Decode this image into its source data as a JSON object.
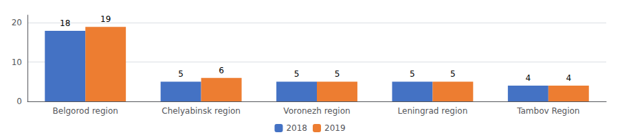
{
  "chart_data": {
    "type": "bar",
    "categories": [
      "Belgorod region",
      "Chelyabinsk region",
      "Voronezh region",
      "Leningrad region",
      "Tambov Region"
    ],
    "series": [
      {
        "name": "2018",
        "color": "#4472c4",
        "values": [
          18,
          5,
          5,
          5,
          4
        ]
      },
      {
        "name": "2019",
        "color": "#ed7d31",
        "values": [
          19,
          6,
          5,
          5,
          4
        ]
      }
    ],
    "ylim": [
      0,
      22
    ],
    "yticks": [
      0,
      10,
      20
    ],
    "grid": true,
    "legend": "bottom",
    "data_labels": true
  }
}
